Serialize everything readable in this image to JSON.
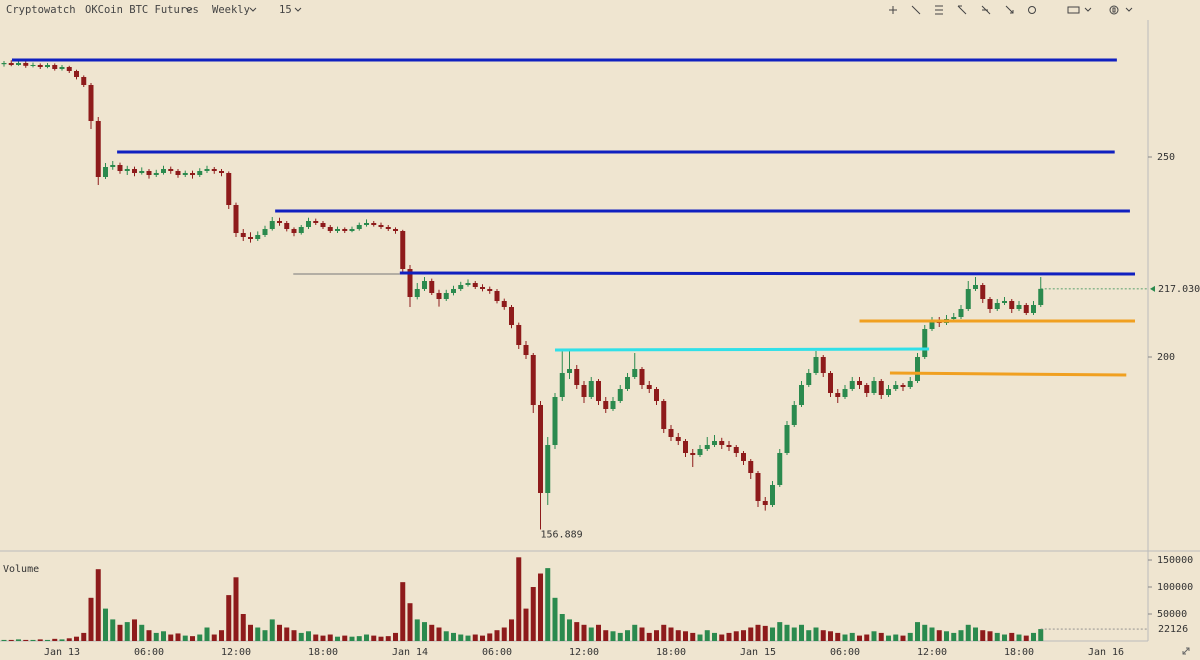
{
  "toolbar": {
    "brand": "Cryptowatch",
    "market": "OKCoin BTC Futures",
    "range": "Weekly",
    "interval": "15"
  },
  "chart_data": {
    "type": "candlestick",
    "volume_label": "Volume",
    "up_color": "#2b8a4e",
    "down_color": "#8e1b1b",
    "categories": [
      null,
      null,
      null,
      null,
      null,
      null,
      null,
      null,
      "Jan 13",
      null,
      null,
      null,
      null,
      null,
      null,
      null,
      null,
      null,
      null,
      null,
      "06:00",
      null,
      null,
      null,
      null,
      null,
      null,
      null,
      null,
      null,
      null,
      null,
      "12:00",
      null,
      null,
      null,
      null,
      null,
      null,
      null,
      null,
      null,
      null,
      null,
      "18:00",
      null,
      null,
      null,
      null,
      null,
      null,
      null,
      null,
      null,
      null,
      null,
      "Jan 14",
      null,
      null,
      null,
      null,
      null,
      null,
      null,
      null,
      null,
      null,
      null,
      "06:00",
      null,
      null,
      null,
      null,
      null,
      null,
      null,
      null,
      null,
      null,
      null,
      "12:00",
      null,
      null,
      null,
      null,
      null,
      null,
      null,
      null,
      null,
      null,
      null,
      "18:00",
      null,
      null,
      null,
      null,
      null,
      null,
      null,
      null,
      null,
      null,
      null,
      "Jan 15",
      null,
      null,
      null,
      null,
      null,
      null,
      null,
      null,
      null,
      null,
      null,
      "06:00",
      null,
      null,
      null,
      null,
      null,
      null,
      null,
      null,
      null,
      null,
      null,
      "12:00",
      null,
      null,
      null,
      null,
      null,
      null,
      null,
      null,
      null,
      null,
      null,
      "18:00",
      null,
      null,
      null,
      null,
      null,
      null,
      null,
      null,
      null,
      null,
      null,
      "Jan 16",
      null,
      null,
      null,
      null,
      null
    ],
    "ohlc": [
      [
        273.2,
        274,
        272.6,
        273.5
      ],
      [
        273.5,
        274.2,
        272.7,
        273
      ],
      [
        273,
        274,
        272.8,
        273.5
      ],
      [
        273.5,
        274,
        272.3,
        272.8
      ],
      [
        272.8,
        273.6,
        272.4,
        273
      ],
      [
        273,
        273.4,
        272,
        272.5
      ],
      [
        272.5,
        273.5,
        272.2,
        273
      ],
      [
        273,
        273.4,
        271.6,
        272
      ],
      [
        272,
        273,
        271.6,
        272.5
      ],
      [
        272.5,
        272.8,
        271,
        271.5
      ],
      [
        271.5,
        271.8,
        269.4,
        270
      ],
      [
        270,
        270.4,
        267.5,
        268
      ],
      [
        268,
        268.5,
        257,
        259
      ],
      [
        259,
        260,
        243,
        245
      ],
      [
        245,
        248.5,
        244.5,
        247.5
      ],
      [
        247.5,
        249,
        246.8,
        248
      ],
      [
        248,
        248.6,
        245.8,
        246.5
      ],
      [
        246.5,
        247.8,
        245.5,
        247
      ],
      [
        247,
        247.6,
        245.2,
        246
      ],
      [
        246,
        247.4,
        245.6,
        246.5
      ],
      [
        246.5,
        247,
        244.6,
        245.5
      ],
      [
        245.5,
        246.8,
        245,
        246
      ],
      [
        246,
        247.8,
        245.6,
        247
      ],
      [
        247,
        247.6,
        245.8,
        246.5
      ],
      [
        246.5,
        247,
        244.8,
        245.5
      ],
      [
        245.5,
        246.6,
        245,
        246
      ],
      [
        246,
        246.6,
        244.6,
        245.5
      ],
      [
        245.5,
        247.2,
        245,
        246.5
      ],
      [
        246.5,
        247.8,
        246,
        247
      ],
      [
        247,
        247.5,
        245.8,
        246.5
      ],
      [
        246.5,
        247,
        245.2,
        246
      ],
      [
        246,
        246.4,
        237,
        238
      ],
      [
        238,
        238.6,
        230,
        231
      ],
      [
        231,
        232,
        229,
        230
      ],
      [
        230,
        231.2,
        228.6,
        229.5
      ],
      [
        229.5,
        231.4,
        229,
        230.5
      ],
      [
        230.5,
        232.8,
        230,
        232
      ],
      [
        232,
        235,
        231.6,
        234
      ],
      [
        234,
        234.8,
        232.8,
        233.5
      ],
      [
        233.5,
        234,
        231.4,
        232
      ],
      [
        232,
        232.4,
        230.2,
        231
      ],
      [
        231,
        233,
        230.6,
        232.5
      ],
      [
        232.5,
        234.8,
        232,
        234
      ],
      [
        234,
        234.6,
        233,
        233.5
      ],
      [
        233.5,
        234,
        232,
        232.5
      ],
      [
        232.5,
        233,
        231,
        231.5
      ],
      [
        231.5,
        232.6,
        231,
        232
      ],
      [
        232,
        232.4,
        231,
        231.5
      ],
      [
        231.5,
        232.6,
        231.2,
        232
      ],
      [
        232,
        233.6,
        231.6,
        233
      ],
      [
        233,
        234.4,
        232.6,
        233.5
      ],
      [
        233.5,
        234,
        232.6,
        233
      ],
      [
        233,
        233.6,
        232,
        232.5
      ],
      [
        232.5,
        233,
        231.5,
        232
      ],
      [
        232,
        232.4,
        230.8,
        231.5
      ],
      [
        231.5,
        231.8,
        221,
        222
      ],
      [
        222,
        223,
        212.5,
        215
      ],
      [
        215,
        218.5,
        214.4,
        217
      ],
      [
        217,
        220,
        216.5,
        219
      ],
      [
        219,
        219.6,
        215.5,
        216
      ],
      [
        216,
        216.8,
        212.6,
        214.5
      ],
      [
        214.5,
        216.8,
        214,
        216
      ],
      [
        216,
        217.8,
        215.4,
        217
      ],
      [
        217,
        218.8,
        216.5,
        218
      ],
      [
        218,
        219.4,
        217.6,
        218.5
      ],
      [
        218.5,
        219,
        217,
        217.5
      ],
      [
        217.5,
        218.2,
        216.4,
        217
      ],
      [
        217,
        217.6,
        215.8,
        216.5
      ],
      [
        216.5,
        217,
        213.4,
        214
      ],
      [
        214,
        214.6,
        211.8,
        212.5
      ],
      [
        212.5,
        213,
        207.2,
        208
      ],
      [
        208,
        208.6,
        202,
        203
      ],
      [
        203,
        204,
        199.5,
        200.5
      ],
      [
        200.5,
        201,
        186,
        188
      ],
      [
        188,
        189,
        156.889,
        166
      ],
      [
        166,
        180,
        163,
        178
      ],
      [
        178,
        191,
        177,
        190
      ],
      [
        190,
        202,
        189,
        196
      ],
      [
        196,
        201.5,
        194.5,
        197
      ],
      [
        197,
        198,
        192,
        193
      ],
      [
        193,
        194,
        188.5,
        190
      ],
      [
        190,
        195,
        189.5,
        194
      ],
      [
        194,
        194.5,
        188,
        189
      ],
      [
        189,
        190,
        186,
        187
      ],
      [
        187,
        190,
        186.5,
        189
      ],
      [
        189,
        193,
        188.5,
        192
      ],
      [
        192,
        196,
        191.5,
        195
      ],
      [
        195,
        201,
        194.5,
        197
      ],
      [
        197,
        197.5,
        192,
        193
      ],
      [
        193,
        194,
        191,
        192
      ],
      [
        192,
        192.5,
        188,
        189
      ],
      [
        189,
        189.5,
        181,
        182
      ],
      [
        182,
        183,
        179,
        180
      ],
      [
        180,
        181,
        178,
        179
      ],
      [
        179,
        179.5,
        175,
        176
      ],
      [
        176,
        177,
        172.5,
        175.5
      ],
      [
        175.5,
        178,
        175,
        177
      ],
      [
        177,
        180,
        176.5,
        178
      ],
      [
        178,
        180.5,
        177.5,
        179
      ],
      [
        179,
        179.8,
        177,
        178
      ],
      [
        178,
        179,
        176.5,
        177.5
      ],
      [
        177.5,
        178,
        175,
        176
      ],
      [
        176,
        176.5,
        173,
        174
      ],
      [
        174,
        174.5,
        169.5,
        171
      ],
      [
        171,
        171.5,
        162.5,
        164
      ],
      [
        164,
        165,
        161.6,
        163
      ],
      [
        163,
        169,
        162.5,
        168
      ],
      [
        168,
        177,
        167.5,
        176
      ],
      [
        176,
        184,
        175.5,
        183
      ],
      [
        183,
        189,
        182.5,
        188
      ],
      [
        188,
        194,
        187.5,
        193
      ],
      [
        193,
        197,
        192.5,
        196
      ],
      [
        196,
        201.5,
        195.5,
        200
      ],
      [
        200,
        200.5,
        195,
        196
      ],
      [
        196,
        196.5,
        190,
        191
      ],
      [
        191,
        192,
        188.5,
        190
      ],
      [
        190,
        193,
        189.5,
        192
      ],
      [
        192,
        195,
        191.5,
        194
      ],
      [
        194,
        195,
        192,
        193
      ],
      [
        193,
        193.5,
        190,
        191
      ],
      [
        191,
        195,
        190.5,
        194
      ],
      [
        194,
        194.5,
        189.5,
        190.5
      ],
      [
        190.5,
        193,
        190,
        192
      ],
      [
        192,
        194,
        191.5,
        193
      ],
      [
        193,
        193.5,
        191.5,
        192.5
      ],
      [
        192.5,
        195,
        192,
        194
      ],
      [
        194,
        201,
        193.5,
        200
      ],
      [
        200,
        208,
        199.5,
        207
      ],
      [
        207,
        210,
        206.5,
        209
      ],
      [
        209,
        210,
        207.5,
        208.5
      ],
      [
        208.5,
        210.5,
        208,
        209.5
      ],
      [
        209.5,
        211,
        209,
        210
      ],
      [
        210,
        213,
        209.5,
        212
      ],
      [
        212,
        219,
        211.5,
        217
      ],
      [
        217,
        220,
        216.5,
        218
      ],
      [
        218,
        218.5,
        213.5,
        214.5
      ],
      [
        214.5,
        215,
        211,
        212
      ],
      [
        212,
        214.5,
        211.5,
        213.5
      ],
      [
        213.5,
        215,
        213,
        214
      ],
      [
        214,
        214.5,
        211,
        212
      ],
      [
        212,
        214,
        211.5,
        213
      ],
      [
        213,
        213.5,
        210.5,
        211
      ],
      [
        211,
        214,
        210.5,
        213
      ],
      [
        213,
        220,
        212.5,
        217.03
      ],
      null,
      null,
      null,
      null,
      null,
      null,
      null,
      null,
      null,
      null,
      null,
      null,
      null,
      null
    ],
    "volume": [
      2000,
      2000,
      3000,
      2000,
      2000,
      3000,
      2000,
      4000,
      3000,
      5000,
      8000,
      15000,
      80000,
      133000,
      60000,
      40000,
      30000,
      35000,
      40000,
      30000,
      20000,
      15000,
      18000,
      12000,
      14000,
      10000,
      9000,
      12000,
      25000,
      12000,
      20000,
      85000,
      118000,
      50000,
      30000,
      25000,
      20000,
      40000,
      30000,
      25000,
      20000,
      15000,
      18000,
      12000,
      10000,
      12000,
      8000,
      10000,
      8000,
      9000,
      12000,
      10000,
      8000,
      9000,
      15000,
      109000,
      70000,
      40000,
      35000,
      30000,
      25000,
      18000,
      15000,
      12000,
      10000,
      12000,
      10000,
      14000,
      20000,
      25000,
      40000,
      155000,
      60000,
      100000,
      125000,
      135000,
      80000,
      50000,
      40000,
      35000,
      30000,
      25000,
      30000,
      20000,
      18000,
      15000,
      20000,
      30000,
      25000,
      15000,
      20000,
      30000,
      25000,
      20000,
      18000,
      15000,
      12000,
      20000,
      15000,
      12000,
      15000,
      18000,
      20000,
      25000,
      30000,
      28000,
      25000,
      35000,
      30000,
      25000,
      30000,
      20000,
      25000,
      20000,
      18000,
      15000,
      12000,
      15000,
      10000,
      12000,
      18000,
      15000,
      10000,
      12000,
      10000,
      15000,
      35000,
      30000,
      25000,
      20000,
      18000,
      15000,
      20000,
      30000,
      25000,
      20000,
      18000,
      15000,
      12000,
      15000,
      12000,
      10000,
      15000,
      22126,
      null,
      null,
      null,
      null,
      null,
      null,
      null,
      null,
      null,
      null,
      null,
      null,
      null,
      null
    ],
    "ylim": [
      152.25,
      284.25
    ],
    "yticks": [
      200,
      250
    ],
    "last_price": {
      "value": 217.03,
      "label": "217.030"
    },
    "vlim": [
      0,
      163000
    ],
    "vticks": [
      50000,
      100000,
      150000
    ],
    "lines": [
      {
        "color": "#1020c0",
        "x": [
          1.1,
          153.5
        ],
        "y": [
          274.25,
          274.25
        ]
      },
      {
        "color": "#1020c0",
        "x": [
          15.6,
          153.2
        ],
        "y": [
          251.25,
          251.25
        ]
      },
      {
        "color": "#1020c0",
        "x": [
          37.4,
          155.3
        ],
        "y": [
          236.5,
          236.5
        ]
      },
      {
        "color": "#777777",
        "x": [
          39.9,
          54.6
        ],
        "y": [
          220.75,
          220.75
        ]
      },
      {
        "color": "#1020c0",
        "x": [
          54.6,
          156
        ],
        "y": [
          221,
          220.75
        ]
      },
      {
        "color": "#30e0e8",
        "x": [
          76,
          127.6
        ],
        "y": [
          201.75,
          202
        ]
      },
      {
        "color": "#f0a020",
        "x": [
          118,
          156
        ],
        "y": [
          209,
          209
        ]
      },
      {
        "color": "#f0a020",
        "x": [
          122.2,
          154.8
        ],
        "y": [
          196,
          195.5
        ]
      }
    ]
  }
}
